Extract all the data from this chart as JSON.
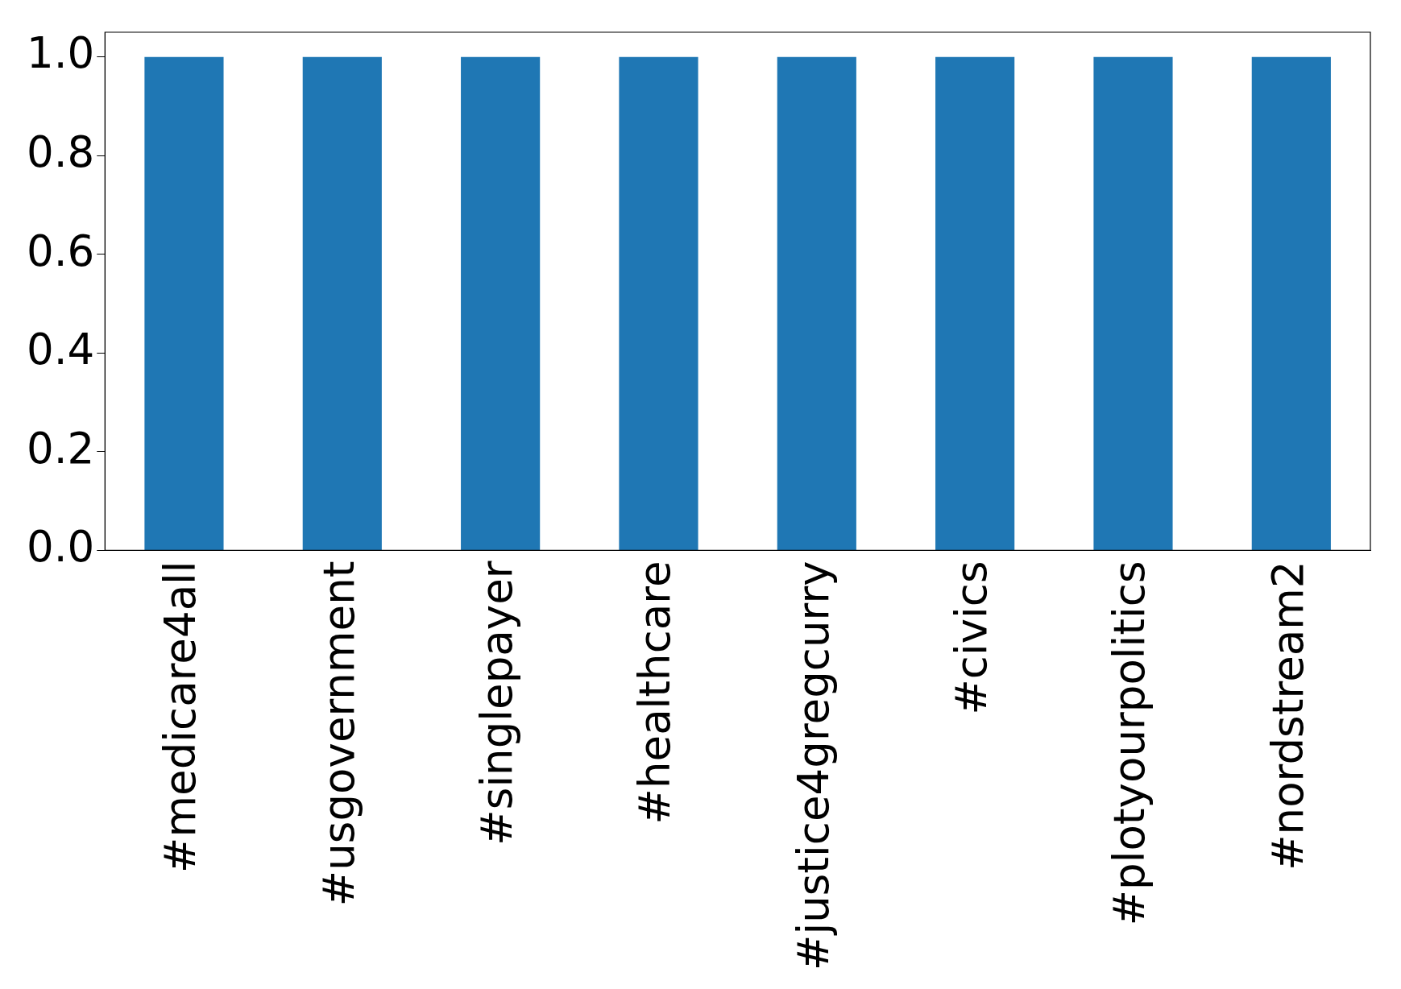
{
  "chart_data": {
    "type": "bar",
    "categories": [
      "#medicare4all",
      "#usgovernment",
      "#singlepayer",
      "#healthcare",
      "#justice4gregcurry",
      "#civics",
      "#plotyourpolitics",
      "#nordstream2"
    ],
    "values": [
      1,
      1,
      1,
      1,
      1,
      1,
      1,
      1
    ],
    "color": "#1f77b4",
    "ylim": [
      0,
      1.05
    ],
    "yticks": [
      {
        "value": 0,
        "label": "0.0"
      },
      {
        "value": 0.2,
        "label": "0.2"
      },
      {
        "value": 0.4,
        "label": "0.4"
      },
      {
        "value": 0.6,
        "label": "0.6"
      },
      {
        "value": 0.8,
        "label": "0.8"
      },
      {
        "value": 1,
        "label": "1.0"
      }
    ],
    "grid": false,
    "legend": false
  }
}
